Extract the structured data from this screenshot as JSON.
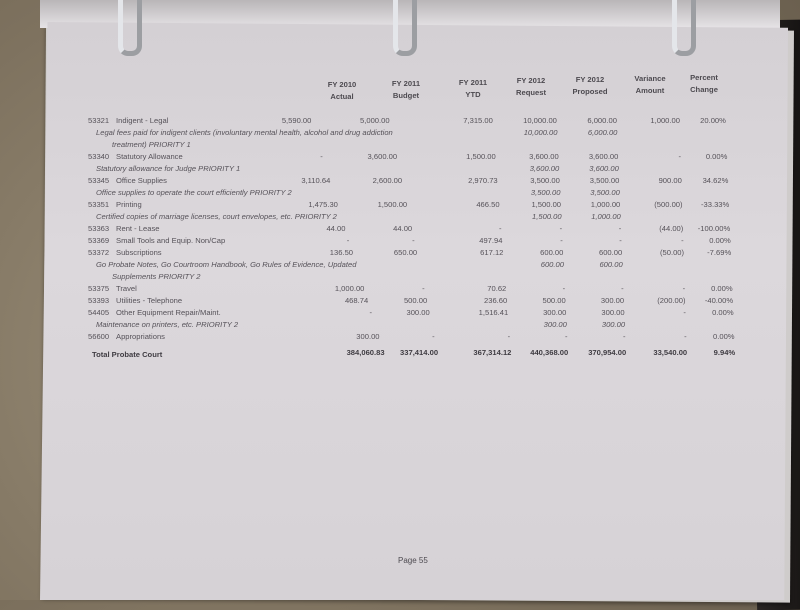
{
  "columns": [
    {
      "line1": "FY 2010",
      "line2": "Actual"
    },
    {
      "line1": "FY 2011",
      "line2": "Budget"
    },
    {
      "line1": "FY 2011",
      "line2": "YTD"
    },
    {
      "line1": "FY 2012",
      "line2": "Request"
    },
    {
      "line1": "FY 2012",
      "line2": "Proposed"
    },
    {
      "line1": "Variance",
      "line2": "Amount"
    },
    {
      "line1": "Percent",
      "line2": "Change"
    }
  ],
  "rows": [
    {
      "code": "53321",
      "name": "Indigent - Legal",
      "values": [
        "5,590.00",
        "5,000.00",
        "7,315.00",
        "10,000.00",
        "6,000.00",
        "1,000.00",
        "20.00%"
      ],
      "description": [
        "Legal fees paid for indigent clients (involuntary mental health, alcohol and drug addiction",
        "treatment)  PRIORITY 1"
      ],
      "description_values": [
        "10,000.00",
        "6,000.00"
      ]
    },
    {
      "code": "53340",
      "name": "Statutory Allowance",
      "values": [
        "-",
        "3,600.00",
        "1,500.00",
        "3,600.00",
        "3,600.00",
        "-",
        "0.00%"
      ],
      "description": [
        "Statutory allowance for Judge   PRIORITY 1"
      ],
      "description_values": [
        "3,600.00",
        "3,600.00"
      ]
    },
    {
      "code": "53345",
      "name": "Office Supplies",
      "values": [
        "3,110.64",
        "2,600.00",
        "2,970.73",
        "3,500.00",
        "3,500.00",
        "900.00",
        "34.62%"
      ],
      "description": [
        "Office supplies to operate the court efficiently    PRIORITY 2"
      ],
      "description_values": [
        "3,500.00",
        "3,500.00"
      ]
    },
    {
      "code": "53351",
      "name": "Printing",
      "values": [
        "1,475.30",
        "1,500.00",
        "466.50",
        "1,500.00",
        "1,000.00",
        "(500.00)",
        "-33.33%"
      ],
      "description": [
        "Certified copies of marriage licenses, court envelopes, etc.   PRIORITY 2"
      ],
      "description_values": [
        "1,500.00",
        "1,000.00"
      ]
    },
    {
      "code": "53363",
      "name": "Rent - Lease",
      "values": [
        "44.00",
        "44.00",
        "-",
        "-",
        "-",
        "(44.00)",
        "-100.00%"
      ]
    },
    {
      "code": "53369",
      "name": "Small Tools and Equip. Non/Cap",
      "values": [
        "-",
        "-",
        "497.94",
        "-",
        "-",
        "-",
        "0.00%"
      ]
    },
    {
      "code": "53372",
      "name": "Subscriptions",
      "values": [
        "136.50",
        "650.00",
        "617.12",
        "600.00",
        "600.00",
        "(50.00)",
        "-7.69%"
      ],
      "description": [
        "Go Probate Notes, Go Courtroom Handbook, Go Rules of Evidence, Updated",
        "Supplements   PRIORITY 2"
      ],
      "description_values": [
        "600.00",
        "600.00"
      ]
    },
    {
      "code": "53375",
      "name": "Travel",
      "values": [
        "1,000.00",
        "-",
        "70.62",
        "-",
        "-",
        "-",
        "0.00%"
      ]
    },
    {
      "code": "53393",
      "name": "Utilities - Telephone",
      "values": [
        "468.74",
        "500.00",
        "236.60",
        "500.00",
        "300.00",
        "(200.00)",
        "-40.00%"
      ]
    },
    {
      "code": "54405",
      "name": "Other Equipment Repair/Maint.",
      "values": [
        "-",
        "300.00",
        "1,516.41",
        "300.00",
        "300.00",
        "-",
        "0.00%"
      ],
      "description": [
        "Maintenance on printers, etc.   PRIORITY 2"
      ],
      "description_values": [
        "300.00",
        "300.00"
      ]
    },
    {
      "code": "56600",
      "name": "Appropriations",
      "values": [
        "300.00",
        "-",
        "-",
        "-",
        "-",
        "-",
        "0.00%"
      ]
    }
  ],
  "total": {
    "label": "Total Probate Court",
    "values": [
      "384,060.83",
      "337,414.00",
      "367,314.12",
      "440,368.00",
      "370,954.00",
      "33,540.00",
      "9.94%"
    ]
  },
  "footer": {
    "page": "Page 55"
  }
}
